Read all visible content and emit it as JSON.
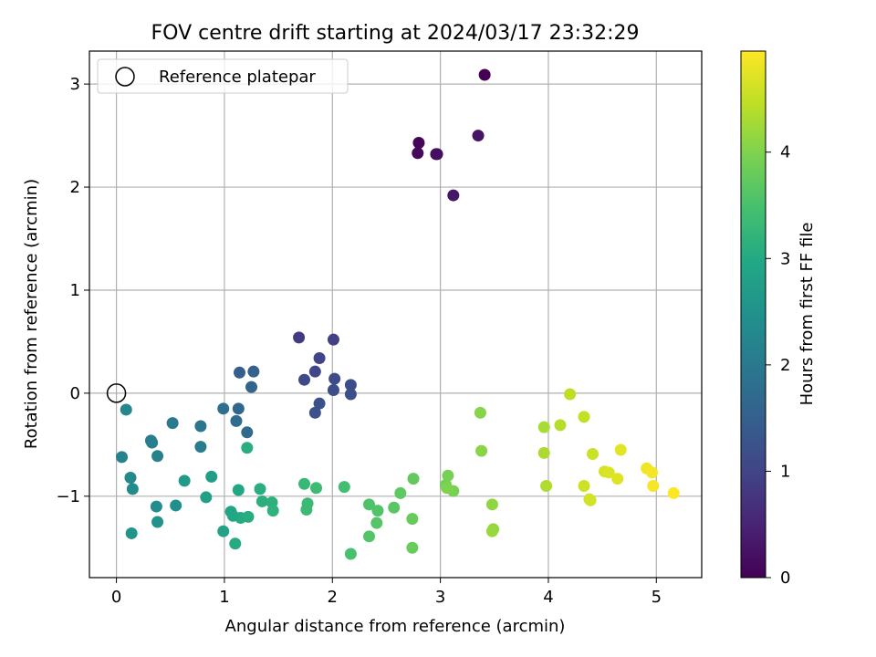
{
  "chart_data": {
    "type": "scatter",
    "title": "FOV centre drift starting at 2024/03/17 23:32:29",
    "xlabel": "Angular distance from reference (arcmin)",
    "ylabel": "Rotation from reference (arcmin)",
    "xlim": [
      -0.25,
      5.42
    ],
    "ylim": [
      -1.79,
      3.32
    ],
    "xticks": [
      0,
      1,
      2,
      3,
      4,
      5
    ],
    "yticks": [
      -1,
      0,
      1,
      2,
      3
    ],
    "grid": true,
    "legend": {
      "placement": "top-left",
      "entries": [
        "Reference platepar"
      ]
    },
    "reference": {
      "label": "Reference platepar",
      "x": 0,
      "y": 0
    },
    "colorbar": {
      "label": "Hours from first FF file",
      "range": [
        0,
        4.95
      ],
      "ticks": [
        0,
        1,
        2,
        3,
        4
      ],
      "colormap": "viridis"
    },
    "points": [
      [
        3.41,
        3.09,
        0.0
      ],
      [
        2.8,
        2.43,
        0.07
      ],
      [
        2.79,
        2.33,
        0.1
      ],
      [
        2.96,
        2.32,
        0.15
      ],
      [
        2.97,
        2.32,
        0.18
      ],
      [
        3.35,
        2.5,
        0.25
      ],
      [
        3.12,
        1.92,
        0.3
      ],
      [
        1.69,
        0.54,
        0.85
      ],
      [
        2.01,
        0.52,
        0.95
      ],
      [
        1.88,
        0.34,
        1.0
      ],
      [
        1.84,
        0.21,
        1.05
      ],
      [
        1.74,
        0.13,
        1.1
      ],
      [
        2.02,
        0.14,
        1.12
      ],
      [
        2.17,
        0.08,
        1.15
      ],
      [
        2.01,
        0.03,
        1.18
      ],
      [
        2.17,
        -0.01,
        1.2
      ],
      [
        1.88,
        -0.1,
        1.22
      ],
      [
        1.84,
        -0.19,
        1.25
      ],
      [
        1.14,
        0.2,
        1.5
      ],
      [
        1.27,
        0.21,
        1.55
      ],
      [
        1.25,
        0.06,
        1.6
      ],
      [
        1.13,
        -0.15,
        1.65
      ],
      [
        1.21,
        -0.38,
        1.7
      ],
      [
        1.11,
        -0.27,
        1.75
      ],
      [
        0.99,
        -0.15,
        1.8
      ],
      [
        0.78,
        -0.32,
        1.95
      ],
      [
        0.52,
        -0.29,
        2.0
      ],
      [
        0.78,
        -0.52,
        2.05
      ],
      [
        0.32,
        -0.46,
        2.1
      ],
      [
        0.33,
        -0.48,
        2.12
      ],
      [
        0.38,
        -0.61,
        2.15
      ],
      [
        0.05,
        -0.62,
        2.2
      ],
      [
        0.09,
        -0.16,
        2.25
      ],
      [
        0.13,
        -0.82,
        2.3
      ],
      [
        0.15,
        -0.93,
        2.35
      ],
      [
        0.37,
        -1.1,
        2.4
      ],
      [
        0.55,
        -1.09,
        2.45
      ],
      [
        0.38,
        -1.25,
        2.5
      ],
      [
        0.14,
        -1.36,
        2.55
      ],
      [
        0.63,
        -0.85,
        2.7
      ],
      [
        0.88,
        -0.81,
        2.75
      ],
      [
        0.83,
        -1.01,
        2.8
      ],
      [
        0.99,
        -1.34,
        2.85
      ],
      [
        1.06,
        -1.15,
        2.9
      ],
      [
        1.08,
        -1.19,
        2.92
      ],
      [
        1.13,
        -0.94,
        2.95
      ],
      [
        1.15,
        -1.21,
        3.0
      ],
      [
        1.1,
        -1.46,
        3.02
      ],
      [
        1.22,
        -1.2,
        3.05
      ],
      [
        1.21,
        -0.53,
        3.08
      ],
      [
        1.33,
        -0.93,
        3.1
      ],
      [
        1.35,
        -1.05,
        3.12
      ],
      [
        1.44,
        -1.06,
        3.15
      ],
      [
        1.45,
        -1.14,
        3.18
      ],
      [
        1.74,
        -0.88,
        3.3
      ],
      [
        1.77,
        -1.07,
        3.32
      ],
      [
        1.76,
        -1.13,
        3.35
      ],
      [
        1.85,
        -0.92,
        3.38
      ],
      [
        2.11,
        -0.91,
        3.45
      ],
      [
        2.17,
        -1.56,
        3.5
      ],
      [
        2.34,
        -1.08,
        3.55
      ],
      [
        2.42,
        -1.14,
        3.58
      ],
      [
        2.34,
        -1.39,
        3.6
      ],
      [
        2.41,
        -1.26,
        3.62
      ],
      [
        2.57,
        -1.11,
        3.65
      ],
      [
        2.63,
        -0.97,
        3.7
      ],
      [
        2.75,
        -0.83,
        3.75
      ],
      [
        2.74,
        -1.22,
        3.78
      ],
      [
        2.74,
        -1.5,
        3.8
      ],
      [
        3.05,
        -0.89,
        3.9
      ],
      [
        3.07,
        -0.8,
        3.92
      ],
      [
        3.12,
        -0.95,
        3.95
      ],
      [
        3.06,
        -0.92,
        3.98
      ],
      [
        3.37,
        -0.19,
        4.05
      ],
      [
        3.38,
        -0.56,
        4.08
      ],
      [
        3.48,
        -1.08,
        4.12
      ],
      [
        3.49,
        -1.32,
        4.15
      ],
      [
        3.48,
        -1.34,
        4.18
      ],
      [
        3.96,
        -0.33,
        4.3
      ],
      [
        3.96,
        -0.58,
        4.32
      ],
      [
        3.98,
        -0.9,
        4.35
      ],
      [
        4.11,
        -0.31,
        4.4
      ],
      [
        4.2,
        -0.01,
        4.45
      ],
      [
        4.33,
        -0.23,
        4.5
      ],
      [
        4.41,
        -0.59,
        4.55
      ],
      [
        4.33,
        -0.9,
        4.58
      ],
      [
        4.38,
        -1.03,
        4.6
      ],
      [
        4.39,
        -1.04,
        4.62
      ],
      [
        4.52,
        -0.76,
        4.65
      ],
      [
        4.56,
        -0.77,
        4.68
      ],
      [
        4.64,
        -0.83,
        4.72
      ],
      [
        4.67,
        -0.55,
        4.75
      ],
      [
        4.91,
        -0.73,
        4.85
      ],
      [
        4.96,
        -0.77,
        4.88
      ],
      [
        4.97,
        -0.9,
        4.9
      ],
      [
        5.16,
        -0.97,
        4.95
      ]
    ]
  }
}
